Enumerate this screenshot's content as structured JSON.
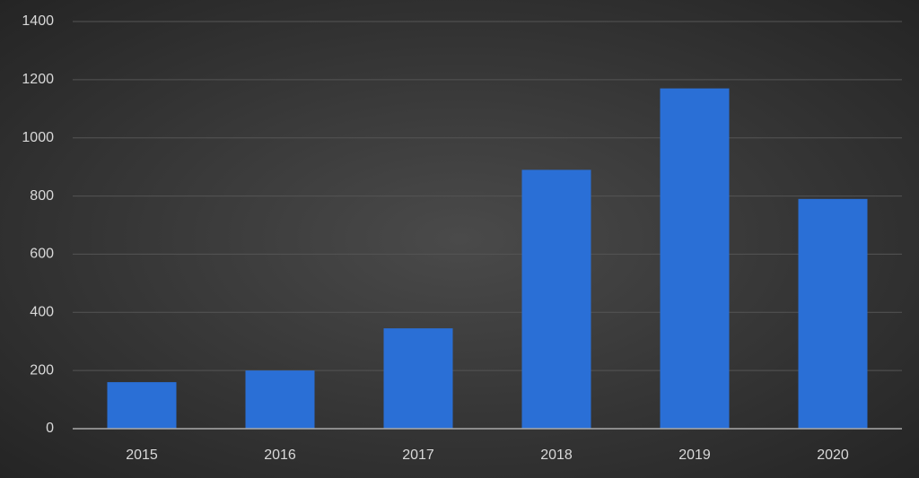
{
  "chart_data": {
    "type": "bar",
    "categories": [
      "2015",
      "2016",
      "2017",
      "2018",
      "2019",
      "2020"
    ],
    "values": [
      160,
      200,
      345,
      890,
      1170,
      790
    ],
    "color": "#2a6fd6",
    "ylim": [
      0,
      1400
    ],
    "yticks": [
      0,
      200,
      400,
      600,
      800,
      1000,
      1200,
      1400
    ],
    "grid": true
  }
}
